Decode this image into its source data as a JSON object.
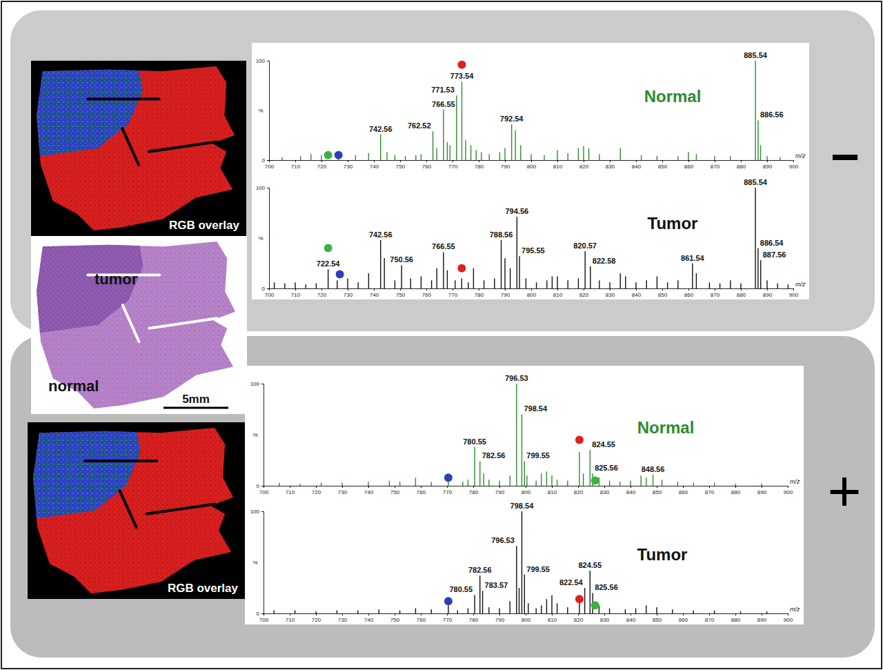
{
  "figure": {
    "panels": [
      {
        "sign": "−",
        "image_label": "RGB overlay"
      },
      {
        "sign": "+",
        "image_label": "RGB overlay"
      }
    ],
    "histology": {
      "tumor_label": "tumor",
      "normal_label": "normal",
      "scale_bar": "5mm"
    }
  },
  "chart_data": [
    {
      "type": "bar",
      "title": "Normal",
      "color": "#2e8b2e",
      "x_label": "m/z",
      "y_label": "%",
      "xlim": [
        700,
        900
      ],
      "xticks": [
        700,
        710,
        720,
        730,
        740,
        750,
        760,
        770,
        780,
        790,
        800,
        810,
        820,
        830,
        840,
        850,
        860,
        870,
        880,
        890,
        900
      ],
      "ylim": [
        0,
        100
      ],
      "yticks": [
        0,
        100
      ],
      "x": [
        705,
        712,
        716,
        720,
        726.5,
        733,
        738,
        742.56,
        745,
        748,
        752,
        756,
        758,
        762.52,
        764,
        766.55,
        768,
        769,
        771.53,
        773.54,
        775,
        777,
        779,
        781,
        784,
        788,
        790,
        792.54,
        794,
        796,
        800,
        805,
        810,
        814,
        818,
        820,
        822,
        826,
        834,
        842,
        848,
        856,
        860,
        863,
        870,
        876,
        885.54,
        886.56,
        887.5,
        890,
        895
      ],
      "values": [
        3,
        4,
        6,
        5,
        4,
        5,
        7,
        26,
        8,
        5,
        4,
        5,
        6,
        29,
        12,
        51,
        18,
        15,
        65,
        79,
        20,
        15,
        10,
        8,
        6,
        8,
        12,
        36,
        30,
        15,
        6,
        5,
        10,
        7,
        12,
        14,
        12,
        6,
        12,
        5,
        4,
        4,
        8,
        6,
        4,
        4,
        100,
        40,
        15,
        4,
        3
      ],
      "annotations": [
        {
          "x": 742.56,
          "y": 26,
          "text": "742.56"
        },
        {
          "x": 762.52,
          "y": 29,
          "text": "762.52"
        },
        {
          "x": 766.55,
          "y": 51,
          "text": "766.55"
        },
        {
          "x": 771.53,
          "y": 65,
          "text": "771.53"
        },
        {
          "x": 773.54,
          "y": 79,
          "text": "773.54"
        },
        {
          "x": 792.54,
          "y": 36,
          "text": "792.54"
        },
        {
          "x": 885.54,
          "y": 100,
          "text": "885.54"
        },
        {
          "x": 886.56,
          "y": 40,
          "text": "886.56"
        }
      ],
      "markers": [
        {
          "x": 773.54,
          "y": 96,
          "color": "#e0201c"
        },
        {
          "x": 722.54,
          "y": 5,
          "color": "#3cb043"
        },
        {
          "x": 726.5,
          "y": 5,
          "color": "#2b3fb8"
        }
      ]
    },
    {
      "type": "bar",
      "title": "Tumor",
      "color": "#111111",
      "x_label": "m/z",
      "y_label": "%",
      "xlim": [
        700,
        900
      ],
      "xticks": [
        700,
        710,
        720,
        730,
        740,
        750,
        760,
        770,
        780,
        790,
        800,
        810,
        820,
        830,
        840,
        850,
        860,
        870,
        880,
        890,
        900
      ],
      "ylim": [
        0,
        100
      ],
      "yticks": [
        0,
        100
      ],
      "x": [
        702,
        706,
        710,
        714,
        718,
        722.54,
        726,
        730,
        734,
        738,
        742.56,
        744,
        748,
        750.56,
        754,
        758,
        762,
        764,
        766.55,
        768,
        771,
        773.5,
        776,
        778,
        782,
        786,
        788.56,
        790,
        792,
        794.56,
        795.55,
        798,
        802,
        806,
        808,
        810,
        814,
        818,
        820.57,
        822.58,
        826,
        830,
        834,
        836,
        840,
        844,
        848,
        852,
        856,
        861.54,
        863,
        868,
        872,
        876,
        880,
        885.54,
        886.54,
        887.56,
        890,
        894,
        898
      ],
      "values": [
        6,
        5,
        6,
        4,
        5,
        19,
        8,
        10,
        6,
        15,
        48,
        30,
        8,
        23,
        10,
        12,
        8,
        20,
        36,
        18,
        8,
        10,
        6,
        20,
        8,
        10,
        48,
        30,
        20,
        71,
        32,
        10,
        6,
        8,
        12,
        12,
        8,
        10,
        37,
        22,
        8,
        6,
        15,
        12,
        6,
        8,
        12,
        6,
        8,
        25,
        15,
        6,
        5,
        8,
        5,
        100,
        40,
        28,
        8,
        5,
        4
      ],
      "annotations": [
        {
          "x": 722.54,
          "y": 19,
          "text": "722.54"
        },
        {
          "x": 742.56,
          "y": 48,
          "text": "742.56"
        },
        {
          "x": 750.56,
          "y": 23,
          "text": "750.56"
        },
        {
          "x": 766.55,
          "y": 36,
          "text": "766.55"
        },
        {
          "x": 788.56,
          "y": 48,
          "text": "788.56"
        },
        {
          "x": 794.56,
          "y": 71,
          "text": "794.56"
        },
        {
          "x": 795.55,
          "y": 32,
          "text": "795.55"
        },
        {
          "x": 820.57,
          "y": 37,
          "text": "820.57"
        },
        {
          "x": 822.58,
          "y": 22,
          "text": "822.58"
        },
        {
          "x": 861.54,
          "y": 25,
          "text": "861.54"
        },
        {
          "x": 885.54,
          "y": 100,
          "text": "885.54"
        },
        {
          "x": 886.54,
          "y": 40,
          "text": "886.54"
        },
        {
          "x": 887.56,
          "y": 28,
          "text": "887.56"
        }
      ],
      "markers": [
        {
          "x": 722.54,
          "y": 40,
          "color": "#3cb043"
        },
        {
          "x": 727,
          "y": 14,
          "color": "#2b3fb8"
        },
        {
          "x": 773.5,
          "y": 20,
          "color": "#e0201c"
        }
      ]
    },
    {
      "type": "bar",
      "title": "Normal",
      "color": "#2e8b2e",
      "x_label": "m/z",
      "y_label": "%",
      "xlim": [
        700,
        900
      ],
      "xticks": [
        700,
        710,
        720,
        730,
        740,
        750,
        760,
        770,
        780,
        790,
        800,
        810,
        820,
        830,
        840,
        850,
        860,
        870,
        880,
        890,
        900
      ],
      "ylim": [
        0,
        100
      ],
      "yticks": [
        0,
        100
      ],
      "x": [
        706,
        714,
        722,
        730,
        740,
        748,
        752,
        758,
        764,
        770.5,
        776,
        778,
        780.55,
        782.56,
        784,
        786,
        790,
        794,
        796.53,
        798.54,
        799.55,
        800.5,
        804,
        806,
        808,
        810,
        812,
        816,
        820.5,
        822,
        824.55,
        825.56,
        828,
        832,
        836,
        840,
        844,
        846,
        848.56,
        852,
        858,
        864,
        872,
        880,
        890
      ],
      "values": [
        3,
        2,
        3,
        3,
        4,
        5,
        4,
        8,
        4,
        5,
        4,
        6,
        38,
        24,
        12,
        6,
        5,
        10,
        100,
        70,
        24,
        10,
        5,
        12,
        14,
        10,
        6,
        5,
        33,
        12,
        35,
        12,
        8,
        5,
        4,
        5,
        10,
        8,
        11,
        6,
        4,
        3,
        3,
        2,
        2
      ],
      "annotations": [
        {
          "x": 780.55,
          "y": 38,
          "text": "780.55"
        },
        {
          "x": 782.56,
          "y": 24,
          "text": "782.56"
        },
        {
          "x": 796.53,
          "y": 100,
          "text": "796.53"
        },
        {
          "x": 798.54,
          "y": 70,
          "text": "798.54"
        },
        {
          "x": 799.55,
          "y": 24,
          "text": "799.55"
        },
        {
          "x": 824.55,
          "y": 35,
          "text": "824.55"
        },
        {
          "x": 825.56,
          "y": 12,
          "text": "825.56"
        },
        {
          "x": 848.56,
          "y": 11,
          "text": "848.56"
        }
      ],
      "markers": [
        {
          "x": 770.5,
          "y": 8,
          "color": "#2b3fb8"
        },
        {
          "x": 820.5,
          "y": 45,
          "color": "#e0201c"
        },
        {
          "x": 826.5,
          "y": 5,
          "color": "#3cb043"
        }
      ]
    },
    {
      "type": "bar",
      "title": "Tumor",
      "color": "#111111",
      "x_label": "m/z",
      "y_label": "%",
      "xlim": [
        700,
        900
      ],
      "xticks": [
        700,
        710,
        720,
        730,
        740,
        750,
        760,
        770,
        780,
        790,
        800,
        810,
        820,
        830,
        840,
        850,
        860,
        870,
        880,
        890,
        900
      ],
      "ylim": [
        0,
        100
      ],
      "yticks": [
        0,
        100
      ],
      "x": [
        704,
        712,
        720,
        728,
        736,
        744,
        752,
        758,
        764,
        770.5,
        774,
        778,
        780.55,
        782.56,
        783.57,
        786,
        790,
        794,
        796.53,
        797.5,
        798.54,
        799.55,
        801,
        804,
        806,
        808,
        810,
        812,
        816,
        820.5,
        822.54,
        824.55,
        825.56,
        828,
        832,
        838,
        842,
        846,
        850,
        856,
        864,
        872,
        882,
        892
      ],
      "values": [
        3,
        3,
        2,
        3,
        3,
        4,
        3,
        5,
        4,
        8,
        3,
        5,
        18,
        37,
        22,
        6,
        5,
        12,
        66,
        25,
        100,
        38,
        10,
        5,
        8,
        14,
        18,
        10,
        6,
        15,
        25,
        42,
        20,
        8,
        5,
        4,
        5,
        8,
        6,
        4,
        3,
        3,
        2,
        2
      ],
      "annotations": [
        {
          "x": 780.55,
          "y": 18,
          "text": "780.55"
        },
        {
          "x": 782.56,
          "y": 37,
          "text": "782.56"
        },
        {
          "x": 783.57,
          "y": 22,
          "text": "783.57"
        },
        {
          "x": 796.53,
          "y": 66,
          "text": "796.53"
        },
        {
          "x": 798.54,
          "y": 100,
          "text": "798.54"
        },
        {
          "x": 799.55,
          "y": 38,
          "text": "799.55"
        },
        {
          "x": 822.54,
          "y": 25,
          "text": "822.54"
        },
        {
          "x": 824.55,
          "y": 42,
          "text": "824.55"
        },
        {
          "x": 825.56,
          "y": 20,
          "text": "825.56"
        }
      ],
      "markers": [
        {
          "x": 770.5,
          "y": 12,
          "color": "#2b3fb8"
        },
        {
          "x": 820.5,
          "y": 14,
          "color": "#e0201c"
        },
        {
          "x": 826.5,
          "y": 8,
          "color": "#3cb043"
        }
      ]
    }
  ]
}
